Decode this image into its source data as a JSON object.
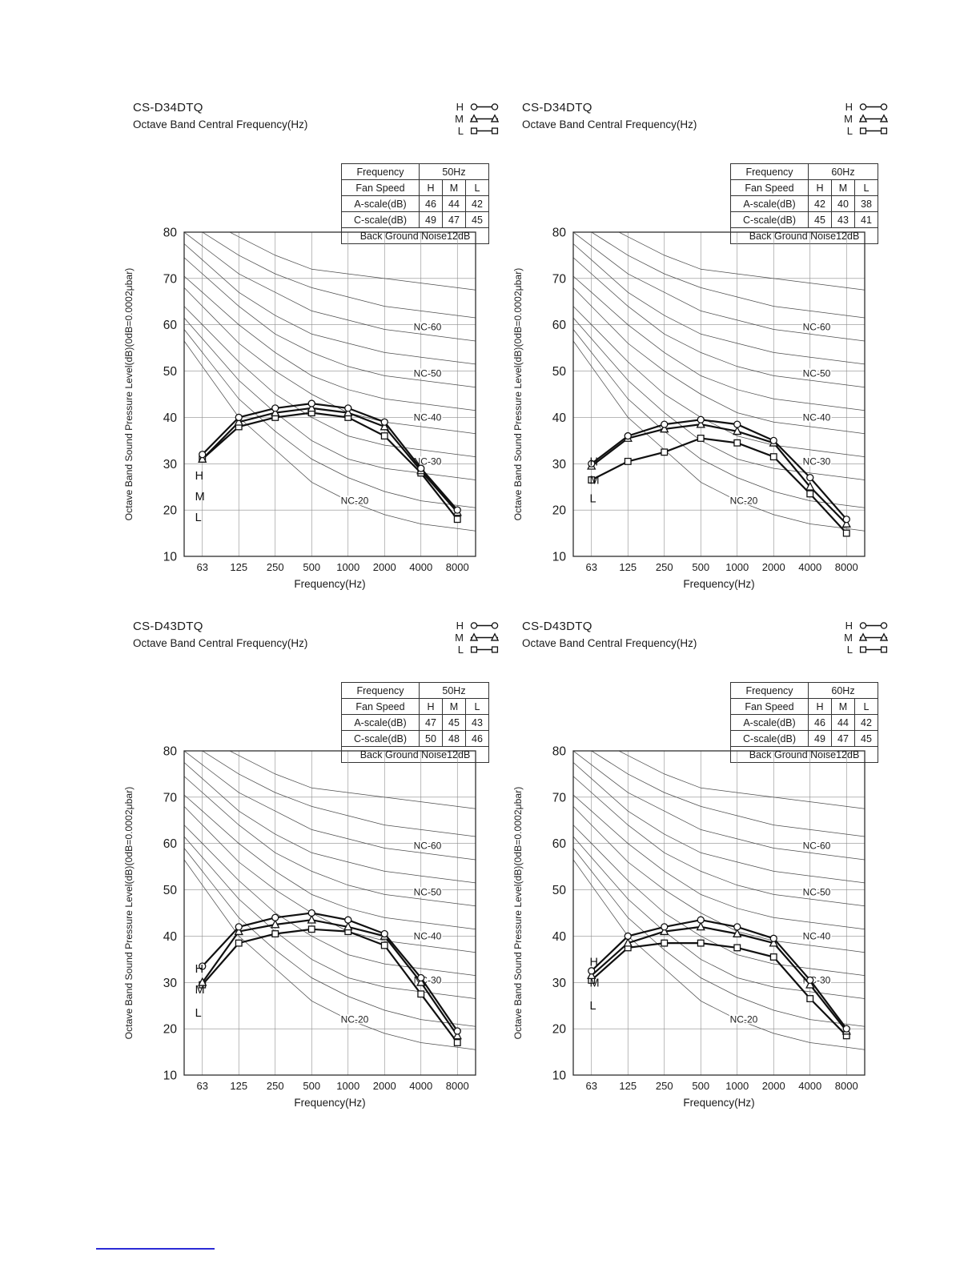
{
  "legend": {
    "items": [
      {
        "label": "H",
        "marker": "circle"
      },
      {
        "label": "M",
        "marker": "triangle"
      },
      {
        "label": "L",
        "marker": "square"
      }
    ]
  },
  "axes": {
    "ylabel": "Octave Band Sound Pressure Level(dB)(0dB=0.0002μbar)",
    "xlabel": "Frequency(Hz)",
    "yticks": [
      10,
      20,
      30,
      40,
      50,
      60,
      70,
      80
    ],
    "xticks": [
      "63",
      "125",
      "250",
      "500",
      "1000",
      "2000",
      "4000",
      "8000"
    ],
    "ylim": [
      10,
      80
    ]
  },
  "nc_reference_curves": {
    "NC-20": [
      51,
      40,
      33,
      26,
      22,
      19,
      17,
      16
    ],
    "NC-25": [
      54,
      44,
      37,
      31,
      27,
      24,
      22,
      21
    ],
    "NC-30": [
      57,
      48,
      41,
      35,
      31,
      29,
      28,
      27
    ],
    "NC-35": [
      60,
      52,
      45,
      40,
      36,
      34,
      33,
      32
    ],
    "NC-40": [
      64,
      56,
      50,
      45,
      41,
      39,
      38,
      37
    ],
    "NC-45": [
      67,
      60,
      54,
      49,
      46,
      44,
      43,
      42
    ],
    "NC-50": [
      71,
      64,
      58,
      54,
      51,
      49,
      48,
      47
    ],
    "NC-55": [
      74,
      67,
      62,
      58,
      56,
      54,
      53,
      52
    ],
    "NC-60": [
      77,
      71,
      67,
      63,
      61,
      59,
      58,
      57
    ],
    "NC-65": [
      80,
      75,
      71,
      68,
      66,
      64,
      63,
      62
    ],
    "NC-70": [
      83,
      79,
      75,
      72,
      71,
      70,
      69,
      68
    ]
  },
  "nc_labels": [
    {
      "text": "NC-60",
      "band": 5.8,
      "db": 59.5
    },
    {
      "text": "NC-50",
      "band": 5.8,
      "db": 49.5
    },
    {
      "text": "NC-40",
      "band": 5.8,
      "db": 40.0
    },
    {
      "text": "NC-30",
      "band": 5.8,
      "db": 30.5
    },
    {
      "text": "NC-20",
      "band": 3.8,
      "db": 22.0
    }
  ],
  "chart_data": [
    {
      "type": "line",
      "title": "CS-D34DTQ",
      "subtitle": "Octave Band Central Frequency(Hz)",
      "power_frequency": "50Hz",
      "categories": [
        63,
        125,
        250,
        500,
        1000,
        2000,
        4000,
        8000
      ],
      "series": [
        {
          "name": "H",
          "marker": "circle",
          "values": [
            32,
            40,
            42,
            43,
            42,
            39,
            29,
            20
          ]
        },
        {
          "name": "M",
          "marker": "triangle",
          "values": [
            31,
            39,
            41,
            42,
            41,
            38,
            28.5,
            19.5
          ]
        },
        {
          "name": "L",
          "marker": "square",
          "values": [
            31,
            38,
            40,
            41,
            40,
            36,
            28,
            18
          ]
        }
      ],
      "hml_labels": [
        {
          "text": "H",
          "band": -0.2,
          "db": 27.5
        },
        {
          "text": "M",
          "band": -0.2,
          "db": 23.0
        },
        {
          "text": "L",
          "band": -0.2,
          "db": 18.5
        }
      ],
      "table": {
        "frequency_label": "Frequency",
        "fan_speed_label": "Fan Speed",
        "speeds": [
          "H",
          "M",
          "L"
        ],
        "a_scale_label": "A-scale(dB)",
        "a_scale": [
          46,
          44,
          42
        ],
        "c_scale_label": "C-scale(dB)",
        "c_scale": [
          49,
          47,
          45
        ],
        "background_noise": "Back Ground Noise12dB"
      }
    },
    {
      "type": "line",
      "title": "CS-D34DTQ",
      "subtitle": "Octave Band Central Frequency(Hz)",
      "power_frequency": "60Hz",
      "categories": [
        63,
        125,
        250,
        500,
        1000,
        2000,
        4000,
        8000
      ],
      "series": [
        {
          "name": "H",
          "marker": "circle",
          "values": [
            30,
            36,
            38.5,
            39.5,
            38.5,
            35,
            27,
            18
          ]
        },
        {
          "name": "M",
          "marker": "triangle",
          "values": [
            29.5,
            35.5,
            37.5,
            38.5,
            37,
            34.5,
            25,
            17
          ]
        },
        {
          "name": "L",
          "marker": "square",
          "values": [
            26.5,
            30.5,
            32.5,
            35.5,
            34.5,
            31.5,
            23.5,
            15
          ]
        }
      ],
      "hml_labels": [
        {
          "text": "H",
          "band": -0.05,
          "db": 30.5
        },
        {
          "text": "M",
          "band": -0.05,
          "db": 26.5
        },
        {
          "text": "L",
          "band": -0.05,
          "db": 22.5
        }
      ],
      "table": {
        "frequency_label": "Frequency",
        "fan_speed_label": "Fan Speed",
        "speeds": [
          "H",
          "M",
          "L"
        ],
        "a_scale_label": "A-scale(dB)",
        "a_scale": [
          42,
          40,
          38
        ],
        "c_scale_label": "C-scale(dB)",
        "c_scale": [
          45,
          43,
          41
        ],
        "background_noise": "Back Ground Noise12dB"
      }
    },
    {
      "type": "line",
      "title": "CS-D43DTQ",
      "subtitle": "Octave Band Central Frequency(Hz)",
      "power_frequency": "50Hz",
      "categories": [
        63,
        125,
        250,
        500,
        1000,
        2000,
        4000,
        8000
      ],
      "series": [
        {
          "name": "H",
          "marker": "circle",
          "values": [
            33.5,
            42,
            44,
            45,
            43.5,
            40.5,
            31,
            19.5
          ]
        },
        {
          "name": "M",
          "marker": "triangle",
          "values": [
            30,
            41,
            42.5,
            43.5,
            42,
            40,
            30,
            18.5
          ]
        },
        {
          "name": "L",
          "marker": "square",
          "values": [
            29.5,
            38.5,
            40.5,
            41.5,
            41,
            38,
            27.5,
            17
          ]
        }
      ],
      "hml_labels": [
        {
          "text": "H",
          "band": -0.2,
          "db": 33.0
        },
        {
          "text": "M",
          "band": -0.2,
          "db": 28.5
        },
        {
          "text": "L",
          "band": -0.2,
          "db": 23.5
        }
      ],
      "table": {
        "frequency_label": "Frequency",
        "fan_speed_label": "Fan Speed",
        "speeds": [
          "H",
          "M",
          "L"
        ],
        "a_scale_label": "A-scale(dB)",
        "a_scale": [
          47,
          45,
          43
        ],
        "c_scale_label": "C-scale(dB)",
        "c_scale": [
          50,
          48,
          46
        ],
        "background_noise": "Back Ground Noise12dB"
      }
    },
    {
      "type": "line",
      "title": "CS-D43DTQ",
      "subtitle": "Octave Band Central Frequency(Hz)",
      "power_frequency": "60Hz",
      "categories": [
        63,
        125,
        250,
        500,
        1000,
        2000,
        4000,
        8000
      ],
      "series": [
        {
          "name": "H",
          "marker": "circle",
          "values": [
            32.5,
            40,
            42,
            43.5,
            42,
            39.5,
            30.5,
            20
          ]
        },
        {
          "name": "M",
          "marker": "triangle",
          "values": [
            31.5,
            38.5,
            41,
            42,
            40.5,
            38.5,
            29.5,
            19.5
          ]
        },
        {
          "name": "L",
          "marker": "square",
          "values": [
            30.5,
            37.5,
            38.5,
            38.5,
            37.5,
            35.5,
            26.5,
            18.5
          ]
        }
      ],
      "hml_labels": [
        {
          "text": "H",
          "band": -0.05,
          "db": 34.5
        },
        {
          "text": "M",
          "band": -0.05,
          "db": 30.0
        },
        {
          "text": "L",
          "band": -0.05,
          "db": 25.0
        }
      ],
      "table": {
        "frequency_label": "Frequency",
        "fan_speed_label": "Fan Speed",
        "speeds": [
          "H",
          "M",
          "L"
        ],
        "a_scale_label": "A-scale(dB)",
        "a_scale": [
          46,
          44,
          42
        ],
        "c_scale_label": "C-scale(dB)",
        "c_scale": [
          49,
          47,
          45
        ],
        "background_noise": "Back Ground Noise12dB"
      }
    }
  ]
}
